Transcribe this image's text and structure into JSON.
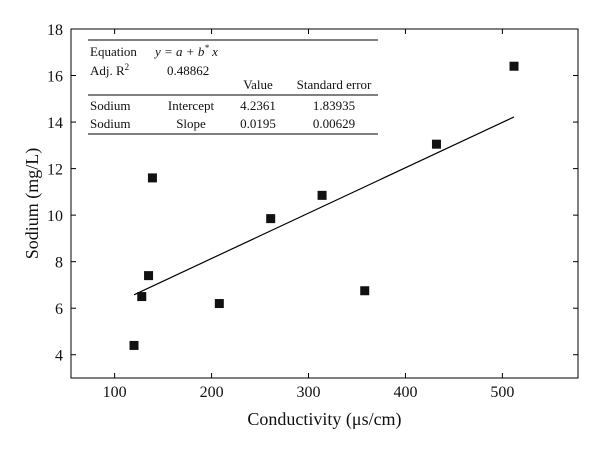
{
  "chart_data": {
    "type": "scatter",
    "xlabel": "Conductivity (μs/cm)",
    "ylabel": "Sodium (mg/L)",
    "xlim": [
      55,
      578
    ],
    "ylim": [
      3,
      18
    ],
    "xticks": [
      100,
      200,
      300,
      400,
      500
    ],
    "yticks": [
      4,
      6,
      8,
      10,
      12,
      14,
      16,
      18
    ],
    "x_tick_labels": [
      "100",
      "200",
      "300",
      "400",
      "500"
    ],
    "y_tick_labels": [
      "4",
      "6",
      "8",
      "10",
      "12",
      "14",
      "16",
      "18"
    ],
    "grid": false,
    "marker_color": "#111111",
    "points": [
      {
        "x": 120,
        "y": 4.4
      },
      {
        "x": 128,
        "y": 6.5
      },
      {
        "x": 135,
        "y": 7.4
      },
      {
        "x": 139,
        "y": 11.6
      },
      {
        "x": 208,
        "y": 6.2
      },
      {
        "x": 261,
        "y": 9.85
      },
      {
        "x": 314,
        "y": 10.85
      },
      {
        "x": 358,
        "y": 6.75
      },
      {
        "x": 432,
        "y": 13.05
      },
      {
        "x": 512,
        "y": 16.4
      }
    ],
    "fit_line": {
      "x_start": 120,
      "x_end": 512,
      "intercept": 4.2361,
      "slope": 0.0195
    },
    "stats_table": {
      "equation_label": "Equation",
      "equation_text": "y = a + b* x",
      "adj_r2_label": "Adj. R",
      "adj_r2_sup": "2",
      "adj_r2_value": "0.48862",
      "header_value": "Value",
      "header_se": "Standard error",
      "rows": [
        {
          "name": "Sodium",
          "param": "Intercept",
          "value": "4.2361",
          "se": "1.83935"
        },
        {
          "name": "Sodium",
          "param": "Slope",
          "value": "0.0195",
          "se": "0.00629"
        }
      ]
    }
  }
}
